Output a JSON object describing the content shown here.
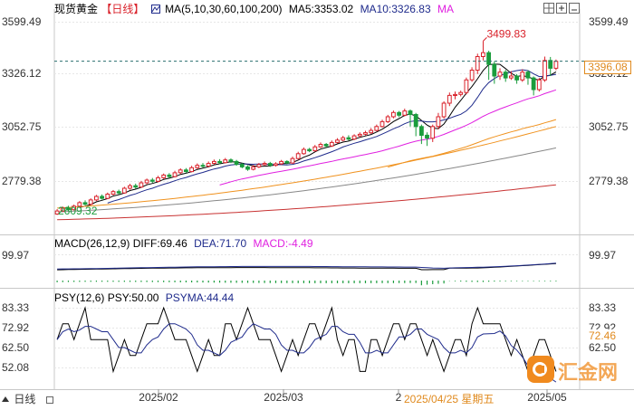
{
  "colors": {
    "up": "#d9212a",
    "down": "#1a9c3c",
    "ma5": "#000000",
    "ma10": "#1f2b8c",
    "ma20": "#e020e0",
    "ma30": "#f0921e",
    "ma60": "#888888",
    "ma100": "#c83232",
    "diff": "#000000",
    "dea": "#1f2b8c",
    "psy": "#000000",
    "psyma": "#1f2b8c",
    "price_line": "#2a6f6f",
    "price_box": "#e08a1e"
  },
  "header": {
    "symbol": "现货黄金",
    "period": "【日线】",
    "ma_label": "MA(5,10,30,60,100,200)",
    "ma5": "MA5:3353.02",
    "ma10": "MA10:3326.83",
    "ma_extra": "MA"
  },
  "macd_header": {
    "label": "MACD(26,12,9)",
    "diff": "DIFF:69.46",
    "dea": "DEA:71.70",
    "macd": "MACD:-4.49"
  },
  "psy_header": {
    "label": "PSY(12,6)",
    "psy": "PSY:50.00",
    "psyma": "PSYMA:44.44"
  },
  "main_panel": {
    "y_ticks": [
      "3599.49",
      "3326.12",
      "3052.75",
      "2779.38"
    ],
    "high_label": "3499.83",
    "low_label": "2609.32",
    "current_price": "3396.08"
  },
  "macd_panel": {
    "y_ticks": [
      "99.97"
    ]
  },
  "psy_panel": {
    "y_ticks_left": [
      "83.33",
      "72.92",
      "62.50",
      "52.08"
    ],
    "y_ticks_right": [
      "83.33",
      "72.92",
      "62.50"
    ],
    "psy_value_label": "72.46"
  },
  "x_axis": {
    "labels": [
      "2025/02",
      "2025/03",
      "2",
      "2025/05"
    ],
    "hover_label": "2025/04/25 星期五"
  },
  "footer": {
    "left_label": "日线",
    "watermark": "汇金网"
  },
  "toolbar_icons": [
    "grid-icon",
    "add-icon",
    "minimize-icon",
    "restore-icon"
  ],
  "chart_data": {
    "type": "candlestick",
    "candles": [
      [
        2609.32,
        2625,
        2605,
        2635
      ],
      [
        2625,
        2640,
        2620,
        2648
      ],
      [
        2640,
        2632,
        2625,
        2652
      ],
      [
        2632,
        2650,
        2628,
        2658
      ],
      [
        2650,
        2668,
        2645,
        2676
      ],
      [
        2668,
        2660,
        2652,
        2680
      ],
      [
        2660,
        2682,
        2655,
        2690
      ],
      [
        2682,
        2700,
        2676,
        2708
      ],
      [
        2700,
        2690,
        2684,
        2710
      ],
      [
        2690,
        2712,
        2686,
        2720
      ],
      [
        2712,
        2725,
        2706,
        2733
      ],
      [
        2725,
        2718,
        2710,
        2735
      ],
      [
        2718,
        2742,
        2714,
        2750
      ],
      [
        2742,
        2755,
        2735,
        2765
      ],
      [
        2755,
        2748,
        2740,
        2766
      ],
      [
        2748,
        2770,
        2744,
        2780
      ],
      [
        2770,
        2784,
        2762,
        2792
      ],
      [
        2784,
        2778,
        2770,
        2795
      ],
      [
        2778,
        2796,
        2772,
        2806
      ],
      [
        2796,
        2810,
        2790,
        2818
      ],
      [
        2810,
        2802,
        2795,
        2820
      ],
      [
        2802,
        2822,
        2798,
        2832
      ],
      [
        2822,
        2836,
        2815,
        2845
      ],
      [
        2836,
        2828,
        2820,
        2846
      ],
      [
        2828,
        2848,
        2824,
        2858
      ],
      [
        2848,
        2860,
        2842,
        2870
      ],
      [
        2860,
        2856,
        2848,
        2872
      ],
      [
        2856,
        2870,
        2850,
        2880
      ],
      [
        2870,
        2880,
        2864,
        2890
      ],
      [
        2880,
        2874,
        2866,
        2892
      ],
      [
        2874,
        2888,
        2870,
        2898
      ],
      [
        2888,
        2880,
        2872,
        2896
      ],
      [
        2880,
        2865,
        2858,
        2888
      ],
      [
        2865,
        2852,
        2845,
        2872
      ],
      [
        2852,
        2840,
        2832,
        2860
      ],
      [
        2840,
        2852,
        2834,
        2862
      ],
      [
        2852,
        2864,
        2846,
        2872
      ],
      [
        2864,
        2870,
        2858,
        2880
      ],
      [
        2870,
        2860,
        2852,
        2878
      ],
      [
        2860,
        2868,
        2854,
        2876
      ],
      [
        2868,
        2880,
        2862,
        2888
      ],
      [
        2880,
        2872,
        2866,
        2886
      ],
      [
        2872,
        2895,
        2868,
        2905
      ],
      [
        2895,
        2920,
        2890,
        2930
      ],
      [
        2920,
        2942,
        2915,
        2952
      ],
      [
        2942,
        2935,
        2928,
        2950
      ],
      [
        2935,
        2955,
        2930,
        2965
      ],
      [
        2955,
        2968,
        2950,
        2978
      ],
      [
        2968,
        2960,
        2952,
        2975
      ],
      [
        2960,
        2978,
        2955,
        2988
      ],
      [
        2978,
        2990,
        2972,
        3000
      ],
      [
        2990,
        3002,
        2984,
        3012
      ],
      [
        3002,
        2995,
        2988,
        3015
      ],
      [
        2995,
        3012,
        2990,
        3020
      ],
      [
        3012,
        3020,
        3005,
        3030
      ],
      [
        3020,
        3028,
        3014,
        3038
      ],
      [
        3028,
        3040,
        3022,
        3052
      ],
      [
        3040,
        3060,
        3035,
        3070
      ],
      [
        3060,
        3085,
        3055,
        3095
      ],
      [
        3085,
        3110,
        3078,
        3120
      ],
      [
        3110,
        3132,
        3102,
        3142
      ],
      [
        3132,
        3118,
        3108,
        3140
      ],
      [
        3118,
        3140,
        3112,
        3152
      ],
      [
        3140,
        3122,
        3060,
        3148
      ],
      [
        3122,
        3060,
        3010,
        3130
      ],
      [
        3060,
        3015,
        2970,
        3070
      ],
      [
        3015,
        3000,
        2960,
        3030
      ],
      [
        3000,
        3060,
        2980,
        3070
      ],
      [
        3060,
        3110,
        3045,
        3130
      ],
      [
        3110,
        3180,
        3100,
        3190
      ],
      [
        3180,
        3220,
        3165,
        3235
      ],
      [
        3220,
        3225,
        3200,
        3240
      ],
      [
        3225,
        3235,
        3215,
        3245
      ],
      [
        3235,
        3300,
        3225,
        3312
      ],
      [
        3300,
        3350,
        3290,
        3365
      ],
      [
        3350,
        3420,
        3330,
        3435
      ],
      [
        3420,
        3440,
        3400,
        3499.83
      ],
      [
        3440,
        3380,
        3300,
        3450
      ],
      [
        3380,
        3320,
        3280,
        3395
      ],
      [
        3320,
        3340,
        3300,
        3360
      ],
      [
        3340,
        3310,
        3290,
        3352
      ],
      [
        3310,
        3320,
        3300,
        3345
      ],
      [
        3320,
        3300,
        3280,
        3330
      ],
      [
        3300,
        3340,
        3290,
        3355
      ],
      [
        3340,
        3310,
        3275,
        3350
      ],
      [
        3310,
        3250,
        3220,
        3318
      ],
      [
        3250,
        3300,
        3240,
        3310
      ],
      [
        3300,
        3400,
        3290,
        3420
      ],
      [
        3400,
        3360,
        3320,
        3418
      ],
      [
        3360,
        3396.08,
        3350,
        3405
      ]
    ],
    "ma_periods": [
      5,
      10,
      30,
      60,
      100
    ],
    "macd": {
      "diff_end": 69.46,
      "dea_end": 71.7,
      "macd_end": -4.49
    },
    "psy": {
      "psy_end": 50.0,
      "psyma_end": 44.44
    },
    "y_range": [
      2609.32,
      3599.49
    ]
  }
}
